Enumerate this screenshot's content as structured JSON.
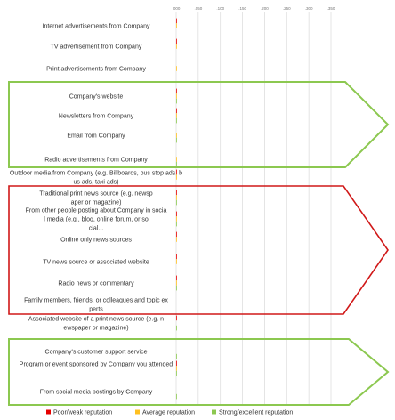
{
  "chart_data": {
    "type": "bar",
    "orientation": "horizontal",
    "title": "",
    "xlabel": "",
    "ylabel": "",
    "xlim": [
      0,
      350
    ],
    "x_ticks": [
      ".000",
      ".050",
      ".100",
      ".150",
      ".200",
      ".250",
      ".300",
      ".350"
    ],
    "grid": true,
    "legend_position": "bottom",
    "categories": [
      "Internet advertisements from Company",
      "TV advertisement from Company",
      "Print advertisements from Company",
      "Company's website",
      "Newsletters from Company",
      "Email from Company",
      "Radio advertisements from Company",
      "Outdoor media from Company (e.g. Billboards, bus stop ads, bus ads, taxi ads)",
      "Traditional print news source (e.g. newspaper or magazine)",
      "From other people posting about Company in social media (e.g., blog, online forum, or social...",
      "Online only news sources",
      "TV news source or associated website",
      "Radio news or commentary",
      "Family members, friends, or colleagues and topic experts",
      "Associated website of a print news source (e.g. newspaper or magazine)",
      "Company's customer support service",
      "Program or event sponsored by Company you attended",
      "From social media postings by Company"
    ],
    "series": [
      {
        "name": "Poor/weak reputation",
        "color": "#e60000",
        "values": [
          0.038,
          0.048,
          0,
          0.01,
          0.005,
          0,
          0,
          0.005,
          0.025,
          0.168,
          0.118,
          0.302,
          0.25,
          0,
          0.002,
          0,
          0.02,
          0
        ]
      },
      {
        "name": "Average reputation",
        "color": "#ffc020",
        "values": [
          0.03,
          0.038,
          0.21,
          0.042,
          0.025,
          0.01,
          0.16,
          0.14,
          0.012,
          0.012,
          0.02,
          0.158,
          0.08,
          0,
          0,
          0,
          0.05,
          0
        ]
      },
      {
        "name": "Strong/excellent reputation",
        "color": "#8cc850",
        "values": [
          0,
          0,
          0,
          0.265,
          0.105,
          0.085,
          0.13,
          0,
          0.012,
          0.008,
          0,
          0,
          0.065,
          0,
          0.02,
          0.13,
          0.11,
          0.08
        ]
      }
    ]
  }
}
